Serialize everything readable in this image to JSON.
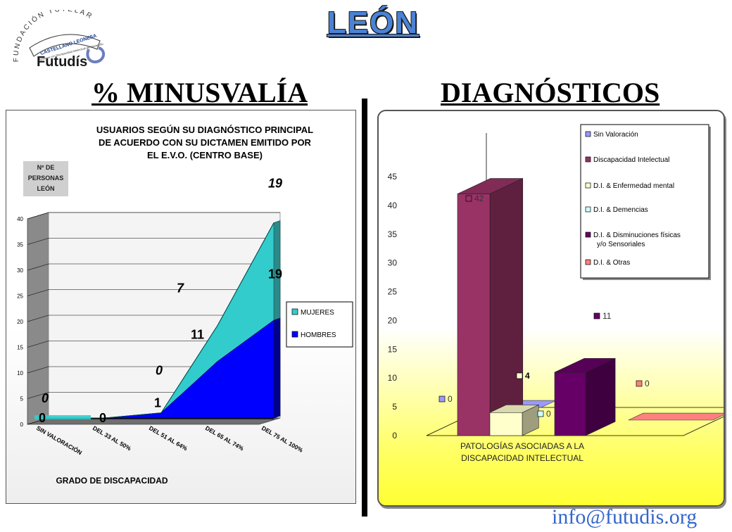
{
  "header": {
    "title": "LEÓN",
    "logo": {
      "arc_text": "FUNDACIÓN TUTELAR",
      "ribbon_text": "CASTELLANO LEONESA",
      "small_text": "Personas con Discapacidad Intelectual del Desarrollo",
      "brand": "Futudís"
    },
    "email": "info@futudis.org"
  },
  "left_section": {
    "title": "% MINUSVALÍA"
  },
  "right_section": {
    "title": "DIAGNÓSTICOS"
  },
  "chart_data": [
    {
      "type": "area",
      "title": "USUARIOS SEGÚN SU DIAGNÓSTICO PRINCIPAL DE ACUERDO CON SU DICTAMEN EMITIDO POR EL E.V.O. (CENTRO BASE)",
      "title_lines": [
        "USUARIOS SEGÚN SU DIAGNÓSTICO PRINCIPAL",
        "DE ACUERDO CON SU DICTAMEN EMITIDO POR",
        "EL E.V.O. (CENTRO BASE)"
      ],
      "ylabel_lines": [
        "Nº DE",
        "PERSONAS",
        "LEÓN"
      ],
      "xlabel": "GRADO DE DISCAPACIDAD",
      "categories": [
        "SIN VALORACIÓN",
        "DEL 33 AL 50%",
        "DEL 51 AL 64%",
        "DEL 65 AL 74%",
        "DEL 75 AL 100%"
      ],
      "stacked": true,
      "three_d": true,
      "ylim": [
        0,
        40
      ],
      "yticks": [
        "0",
        "5",
        "10",
        "15",
        "20",
        "25",
        "30",
        "35",
        "40"
      ],
      "grid": true,
      "legend_position": "right",
      "series": [
        {
          "name": "HOMBRES",
          "color": "#0000ff",
          "values": [
            0,
            0,
            1,
            11,
            19
          ],
          "labels": [
            "0",
            "0",
            "1",
            "11",
            "19"
          ]
        },
        {
          "name": "MUJERES",
          "color": "#33cccc",
          "values": [
            0,
            0,
            0,
            7,
            19
          ],
          "labels": [
            "0",
            "",
            "0",
            "7",
            "19"
          ]
        }
      ]
    },
    {
      "type": "bar",
      "three_d": true,
      "xlabel_lines": [
        "PATOLOGÍAS ASOCIADAS A LA",
        "DISCAPACIDAD INTELECTUAL"
      ],
      "ylim": [
        0,
        45
      ],
      "yticks": [
        "0",
        "5",
        "10",
        "15",
        "20",
        "25",
        "30",
        "35",
        "40",
        "45"
      ],
      "legend_position": "top-right",
      "series": [
        {
          "name": "Sin Valoración",
          "value": 0,
          "label": "0",
          "color": "#9999ff"
        },
        {
          "name": "Discapacidad Intelectual",
          "value": 42,
          "label": "42",
          "color": "#993366"
        },
        {
          "name": "D.I. & Enfermedad mental",
          "value": 4,
          "label": "4",
          "color": "#ffffcc"
        },
        {
          "name": "D.I. & Demencias",
          "value": 0,
          "label": "0",
          "color": "#ccffff"
        },
        {
          "name": "D.I. & Disminuciones físicas y/o Sensoriales",
          "name_lines": [
            "D.I. & Disminuciones físicas",
            "y/o Sensoriales"
          ],
          "value": 11,
          "label": "11",
          "color": "#660066"
        },
        {
          "name": "D.I. & Otras",
          "value": 0,
          "label": "0",
          "color": "#ff8080"
        }
      ]
    }
  ]
}
